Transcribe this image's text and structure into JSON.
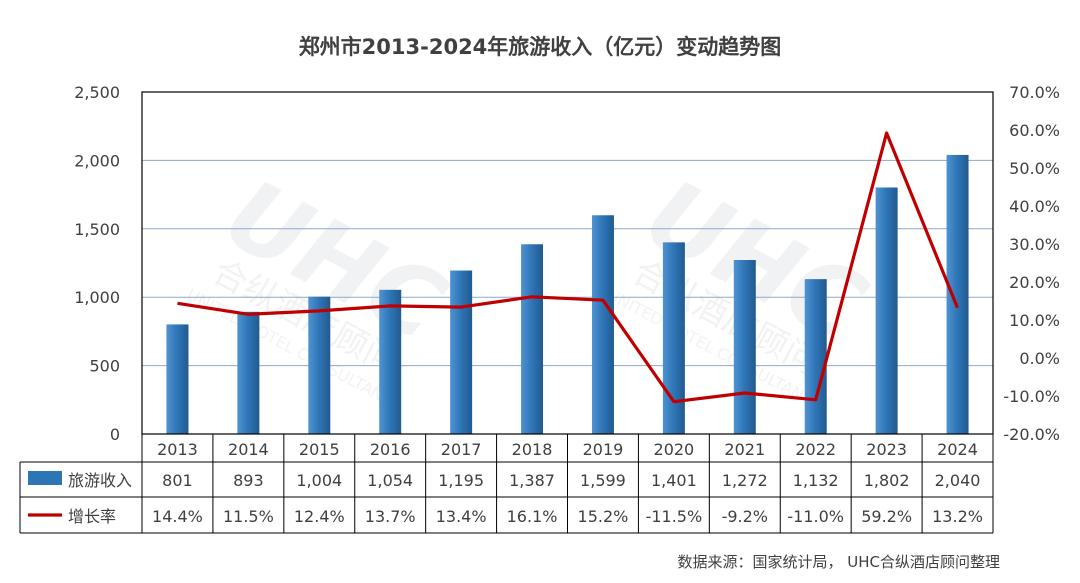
{
  "chart_data": {
    "type": "bar",
    "title": "郑州市2013-2024年旅游收入（亿元）变动趋势图",
    "categories": [
      "2013",
      "2014",
      "2015",
      "2016",
      "2017",
      "2018",
      "2019",
      "2020",
      "2021",
      "2022",
      "2023",
      "2024"
    ],
    "series": [
      {
        "name": "旅游收入",
        "type": "bar",
        "axis": "left",
        "color": "#2E75B6",
        "values": [
          801,
          893,
          1004,
          1054,
          1195,
          1387,
          1599,
          1401,
          1272,
          1132,
          1802,
          2040
        ],
        "labels": [
          "801",
          "893",
          "1,004",
          "1,054",
          "1,195",
          "1,387",
          "1,599",
          "1,401",
          "1,272",
          "1,132",
          "1,802",
          "2,040"
        ]
      },
      {
        "name": "增长率",
        "type": "line",
        "axis": "right",
        "color": "#C00000",
        "values": [
          14.4,
          11.5,
          12.4,
          13.7,
          13.4,
          16.1,
          15.2,
          -11.5,
          -9.2,
          -11.0,
          59.2,
          13.2
        ],
        "labels": [
          "14.4%",
          "11.5%",
          "12.4%",
          "13.7%",
          "13.4%",
          "16.1%",
          "15.2%",
          "-11.5%",
          "-9.2%",
          "-11.0%",
          "59.2%",
          "13.2%"
        ]
      }
    ],
    "y_left": {
      "min": 0,
      "max": 2500,
      "ticks": [
        0,
        500,
        1000,
        1500,
        2000,
        2500
      ],
      "tick_labels": [
        "0",
        "500",
        "1,000",
        "1,500",
        "2,000",
        "2,500"
      ]
    },
    "y_right": {
      "min": -20,
      "max": 70,
      "ticks": [
        -20,
        -10,
        0,
        10,
        20,
        30,
        40,
        50,
        60,
        70
      ],
      "tick_labels": [
        "-20.0%",
        "-10.0%",
        "0.0%",
        "10.0%",
        "20.0%",
        "30.0%",
        "40.0%",
        "50.0%",
        "60.0%",
        "70.0%"
      ]
    },
    "grid": true,
    "legend": "data-table",
    "source": "数据来源：国家统计局，  UHC合纵酒店顾问整理",
    "watermark": "UHC 合纵酒店顾问 UNITED HOTEL CONSULTANT"
  }
}
